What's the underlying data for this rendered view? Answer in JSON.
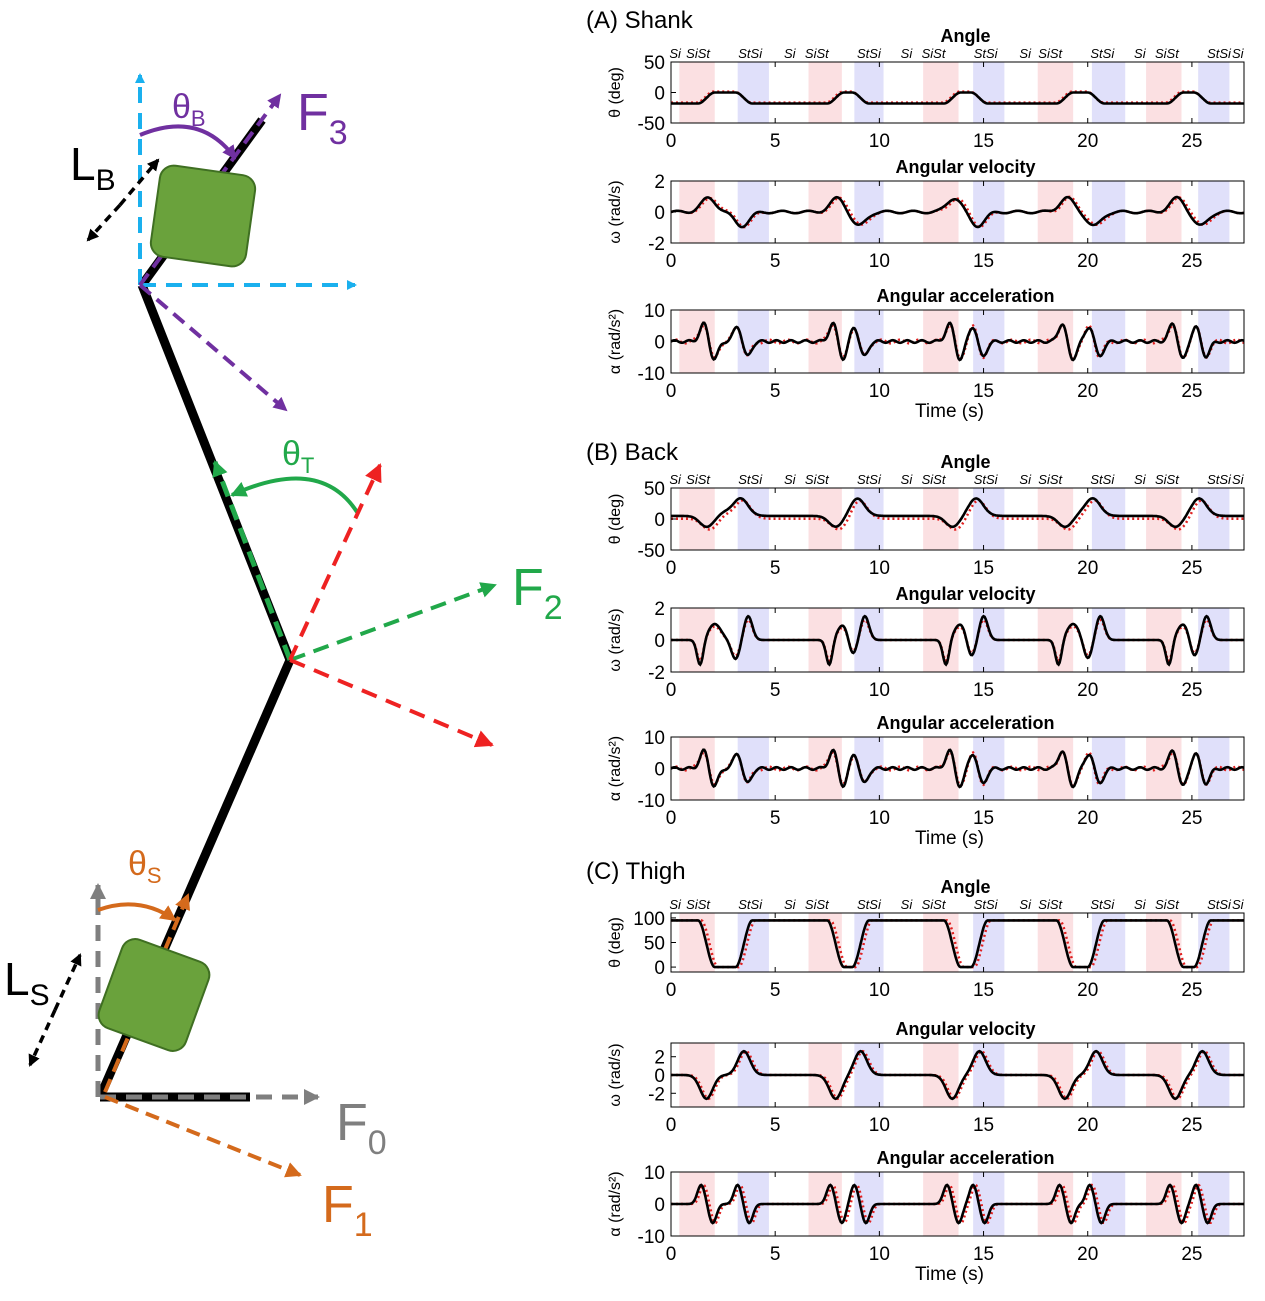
{
  "diagram": {
    "L_B": {
      "main": "L",
      "sub": "B"
    },
    "theta_B": {
      "main": "θ",
      "sub": "B"
    },
    "F3": {
      "main": "F",
      "sub": "3"
    },
    "theta_T": {
      "main": "θ",
      "sub": "T"
    },
    "F2": {
      "main": "F",
      "sub": "2"
    },
    "theta_S": {
      "main": "θ",
      "sub": "S"
    },
    "L_S": {
      "main": "L",
      "sub": "S"
    },
    "F0": {
      "main": "F",
      "sub": "0"
    },
    "F1": {
      "main": "F",
      "sub": "1"
    },
    "colors": {
      "purple": "#7030a0",
      "blue": "#1ab0ee",
      "green": "#21a84a",
      "red": "#ee2222",
      "orange": "#d46a1c",
      "gray": "#7f7f7f",
      "black": "#000000",
      "box": "#6aa23c",
      "box_edge": "#3f6f22"
    }
  },
  "phase_labels": [
    "Si",
    "SiSt",
    "StSi",
    "Si",
    "SiSt",
    "StSi",
    "Si",
    "SiSt",
    "StSi",
    "Si",
    "SiSt",
    "StSi",
    "Si",
    "SiSt",
    "StSi",
    "Si"
  ],
  "phase_label_times": [
    0.2,
    1.3,
    3.8,
    5.7,
    7.0,
    9.5,
    11.3,
    12.6,
    15.1,
    17.0,
    18.2,
    20.7,
    22.5,
    23.8,
    26.3,
    27.2
  ],
  "shading": {
    "red": [
      [
        0.4,
        2.1
      ],
      [
        6.6,
        8.2
      ],
      [
        12.1,
        13.8
      ],
      [
        17.6,
        19.3
      ],
      [
        22.8,
        24.5
      ]
    ],
    "blue": [
      [
        3.2,
        4.7
      ],
      [
        8.8,
        10.2
      ],
      [
        14.5,
        16.0
      ],
      [
        20.2,
        21.8
      ],
      [
        25.3,
        26.8
      ]
    ],
    "colors": {
      "red": "#fbe0e2",
      "blue": "#e0e0fa"
    }
  },
  "chart_data": [
    {
      "panel_title": "(A) Shank",
      "panels": [
        {
          "type": "line",
          "title": "Angle",
          "ylabel": "θ (deg)",
          "xlim": [
            0,
            27.5
          ],
          "ylim": [
            -50,
            50
          ],
          "yticks": [
            -50,
            0,
            50
          ],
          "xticks": [
            0,
            5,
            10,
            15,
            20,
            25
          ],
          "xlabel": "",
          "phase_labels": true,
          "signal": "shank_angle"
        },
        {
          "type": "line",
          "title": "Angular velocity",
          "ylabel": "ω (rad/s)",
          "xlim": [
            0,
            27.5
          ],
          "ylim": [
            -2,
            2
          ],
          "yticks": [
            -2,
            0,
            2
          ],
          "xticks": [
            0,
            5,
            10,
            15,
            20,
            25
          ],
          "xlabel": "",
          "phase_labels": false,
          "signal": "shank_vel"
        },
        {
          "type": "line",
          "title": "Angular acceleration",
          "ylabel": "α (rad/s²)",
          "xlim": [
            0,
            27.5
          ],
          "ylim": [
            -10,
            10
          ],
          "yticks": [
            -10,
            0,
            10
          ],
          "xticks": [
            0,
            5,
            10,
            15,
            20,
            25
          ],
          "xlabel": "Time (s)",
          "phase_labels": false,
          "signal": "shank_acc"
        }
      ]
    },
    {
      "panel_title": "(B) Back",
      "panels": [
        {
          "type": "line",
          "title": "Angle",
          "ylabel": "θ (deg)",
          "xlim": [
            0,
            27.5
          ],
          "ylim": [
            -50,
            50
          ],
          "yticks": [
            -50,
            0,
            50
          ],
          "xticks": [
            0,
            5,
            10,
            15,
            20,
            25
          ],
          "xlabel": "",
          "phase_labels": true,
          "signal": "back_angle"
        },
        {
          "type": "line",
          "title": "Angular velocity",
          "ylabel": "ω (rad/s)",
          "xlim": [
            0,
            27.5
          ],
          "ylim": [
            -2,
            2
          ],
          "yticks": [
            -2,
            0,
            2
          ],
          "xticks": [
            0,
            5,
            10,
            15,
            20,
            25
          ],
          "xlabel": "",
          "phase_labels": false,
          "signal": "back_vel"
        },
        {
          "type": "line",
          "title": "Angular acceleration",
          "ylabel": "α (rad/s²)",
          "xlim": [
            0,
            27.5
          ],
          "ylim": [
            -10,
            10
          ],
          "yticks": [
            -10,
            0,
            10
          ],
          "xticks": [
            0,
            5,
            10,
            15,
            20,
            25
          ],
          "xlabel": "Time (s)",
          "phase_labels": false,
          "signal": "back_acc"
        }
      ]
    },
    {
      "panel_title": "(C) Thigh",
      "panels": [
        {
          "type": "line",
          "title": "Angle",
          "ylabel": "θ (deg)",
          "xlim": [
            0,
            27.5
          ],
          "ylim": [
            -10,
            110
          ],
          "yticks": [
            0,
            50,
            100
          ],
          "xticks": [
            0,
            5,
            10,
            15,
            20,
            25
          ],
          "xlabel": "",
          "phase_labels": true,
          "signal": "thigh_angle"
        },
        {
          "type": "line",
          "title": "Angular velocity",
          "ylabel": "ω (rad/s)",
          "xlim": [
            0,
            27.5
          ],
          "ylim": [
            -3.5,
            3.5
          ],
          "yticks": [
            -2,
            0,
            2
          ],
          "xticks": [
            0,
            5,
            10,
            15,
            20,
            25
          ],
          "xlabel": "",
          "phase_labels": false,
          "signal": "thigh_vel"
        },
        {
          "type": "line",
          "title": "Angular acceleration",
          "ylabel": "α (rad/s²)",
          "xlim": [
            0,
            27.5
          ],
          "ylim": [
            -10,
            10
          ],
          "yticks": [
            -10,
            0,
            10
          ],
          "xticks": [
            0,
            5,
            10,
            15,
            20,
            25
          ],
          "xlabel": "Time (s)",
          "phase_labels": false,
          "signal": "thigh_acc"
        }
      ]
    }
  ],
  "series_styles": {
    "measured": {
      "color": "#000000"
    },
    "estimated": {
      "color": "#e02020",
      "dash": "dotted"
    }
  },
  "stand_intervals": [
    [
      1.8,
      3.4
    ],
    [
      8.0,
      9.0
    ],
    [
      13.6,
      14.7
    ],
    [
      19.0,
      20.3
    ],
    [
      24.3,
      25.4
    ]
  ]
}
